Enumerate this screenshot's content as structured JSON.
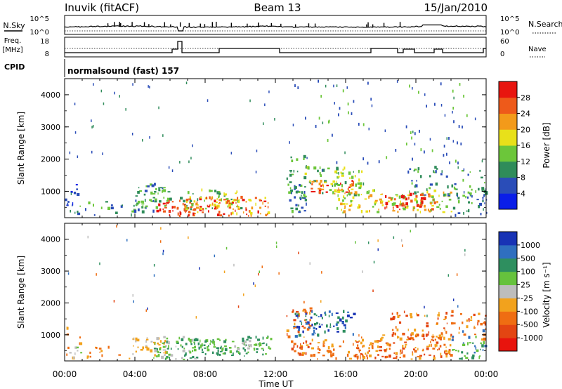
{
  "header": {
    "station": "Inuvik (fitACF)",
    "beam": "Beam 13",
    "date": "15/Jan/2010"
  },
  "summary": {
    "nsky_label": "N.Sky",
    "nsky_top_tick": "10^5",
    "nsky_bottom_tick": "10^0",
    "nsearch_label": "N.Search",
    "nsearch_top_tick": "10^5",
    "nsearch_bottom_tick": "10^0",
    "freq_label_1": "Freq.",
    "freq_label_2": "[MHz]",
    "freq_top_tick": "18",
    "freq_bottom_tick": "8",
    "nave_label": "Nave",
    "nave_top_tick": "60",
    "nave_bottom_tick": "0",
    "cpid_label": "CPID",
    "cpid_text": "normalsound (fast) 157"
  },
  "chart_data": [
    {
      "type": "heatmap",
      "name": "power",
      "ylabel": "Slant Range [km]",
      "yticks": [
        "1000",
        "2000",
        "3000",
        "4000"
      ],
      "ylim": [
        180,
        4500
      ],
      "colorbar_label": "Power [dB]",
      "colorbar_ticks": [
        "4",
        "8",
        "12",
        "16",
        "20",
        "24",
        "28"
      ],
      "colorbar_colors": [
        "#0a1ee8",
        "#2a4db8",
        "#2f8c5a",
        "#6cc63a",
        "#e8e01a",
        "#f39a1a",
        "#ee5a1a",
        "#e8150f"
      ]
    },
    {
      "type": "heatmap",
      "name": "velocity",
      "ylabel": "Slant Range [km]",
      "yticks": [
        "1000",
        "2000",
        "3000",
        "4000"
      ],
      "ylim": [
        180,
        4500
      ],
      "colorbar_label": "Velocity [m s⁻¹]",
      "colorbar_ticks": [
        "1000",
        "500",
        "100",
        "25",
        "-25",
        "-100",
        "-500",
        "-1000"
      ],
      "colorbar_colors": [
        "#1833b5",
        "#2f6fbf",
        "#2e8f5f",
        "#66c23d",
        "#bdbdbd",
        "#f2a21d",
        "#ef6d12",
        "#e34512",
        "#e8140d"
      ]
    }
  ],
  "time_axis": {
    "label": "Time UT",
    "ticks": [
      "00:00",
      "04:00",
      "08:00",
      "12:00",
      "16:00",
      "20:00",
      "00:00"
    ]
  }
}
